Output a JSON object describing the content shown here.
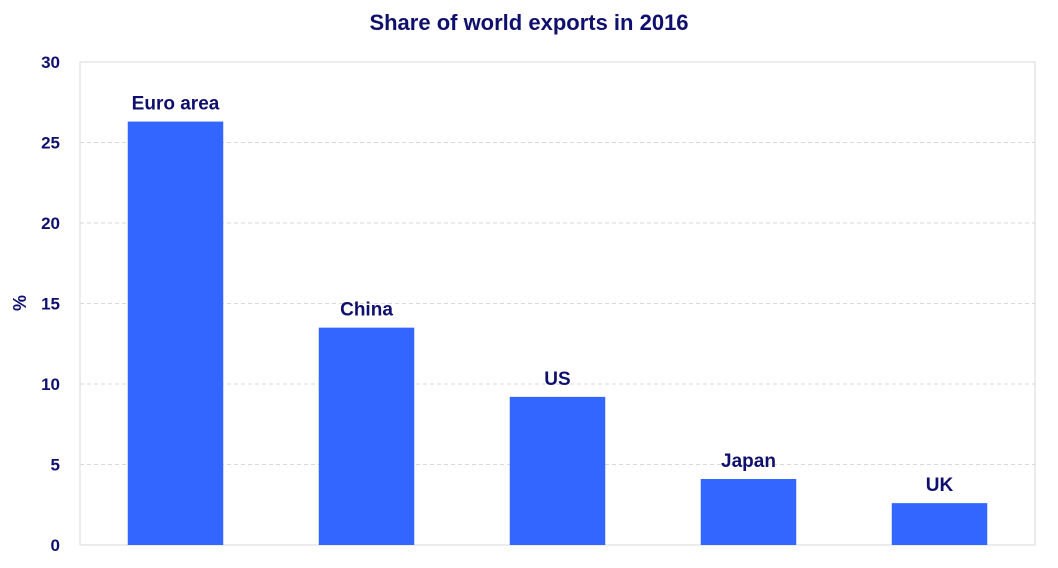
{
  "chart_data": {
    "type": "bar",
    "title": "Share of world exports in 2016",
    "xlabel": "",
    "ylabel": "%",
    "categories": [
      "Euro area",
      "China",
      "US",
      "Japan",
      "UK"
    ],
    "values": [
      26.3,
      13.5,
      9.2,
      4.1,
      2.6
    ],
    "ylim": [
      0,
      30
    ],
    "yticks": [
      0,
      5,
      10,
      15,
      20,
      25,
      30
    ],
    "bar_color": "#3366ff",
    "text_color": "#0f0f6e",
    "grid": true,
    "legend": "none"
  }
}
